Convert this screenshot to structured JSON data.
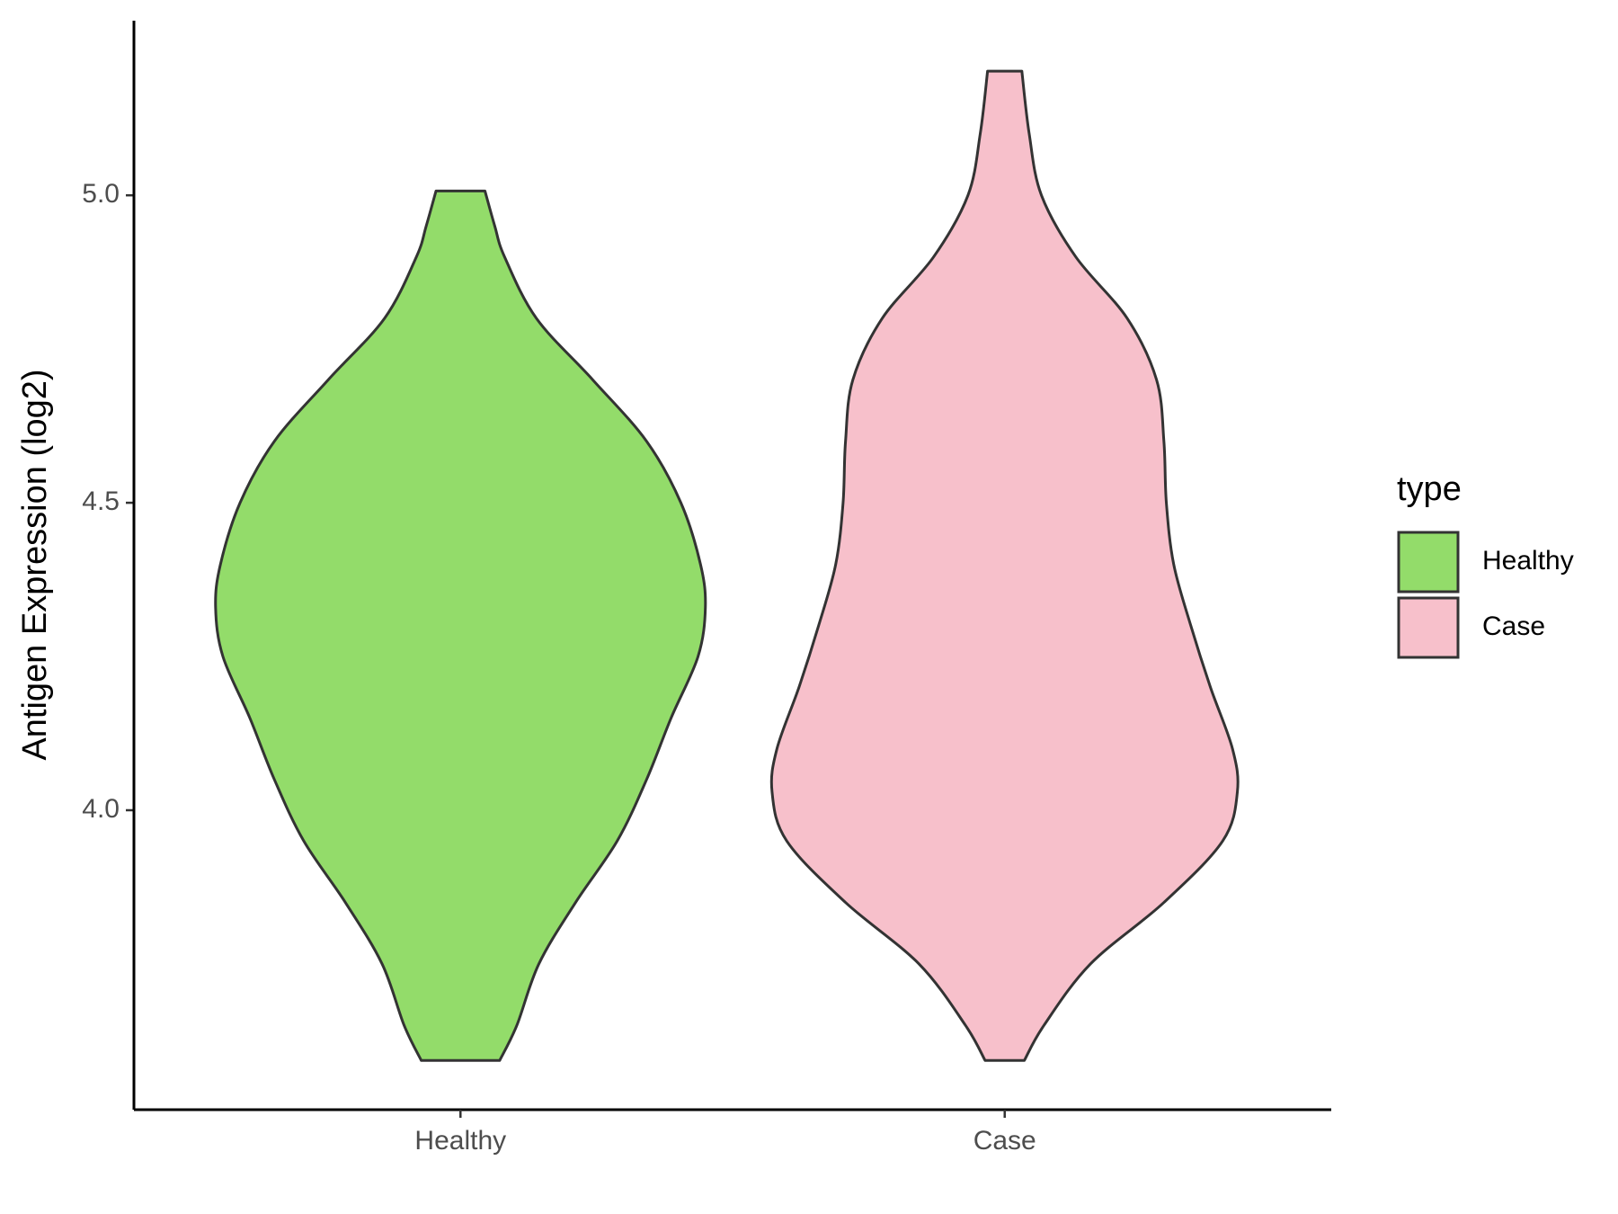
{
  "chart_data": {
    "type": "violin",
    "ylabel": "Antigen Expression (log2)",
    "categories": [
      "Healthy",
      "Case"
    ],
    "ylim": [
      3.513,
      5.284
    ],
    "yticks": [
      {
        "value": 4,
        "label": "4.0"
      },
      {
        "value": 4.5,
        "label": "4.5"
      },
      {
        "value": 5,
        "label": "5.0"
      }
    ],
    "legend_title": "type",
    "legend_position": "right",
    "series": [
      {
        "name": "Healthy",
        "color": "#93dc6a",
        "y": [
          5.007,
          4.95,
          4.9,
          4.8,
          4.7,
          4.6,
          4.5,
          4.4,
          4.33,
          4.25,
          4.15,
          4.05,
          3.95,
          3.85,
          3.75,
          3.65,
          3.593
        ],
        "density": [
          0.1,
          0.14,
          0.18,
          0.31,
          0.54,
          0.76,
          0.9,
          0.98,
          1.0,
          0.97,
          0.86,
          0.76,
          0.64,
          0.47,
          0.32,
          0.23,
          0.16
        ]
      },
      {
        "name": "Case",
        "color": "#f7c0cb",
        "y": [
          5.202,
          5.1,
          5.0,
          4.9,
          4.8,
          4.7,
          4.6,
          4.5,
          4.4,
          4.3,
          4.2,
          4.1,
          4.03,
          3.95,
          3.85,
          3.75,
          3.65,
          3.593
        ],
        "density": [
          0.07,
          0.1,
          0.15,
          0.29,
          0.5,
          0.62,
          0.65,
          0.66,
          0.69,
          0.76,
          0.84,
          0.93,
          0.95,
          0.89,
          0.65,
          0.35,
          0.16,
          0.08
        ]
      }
    ]
  }
}
